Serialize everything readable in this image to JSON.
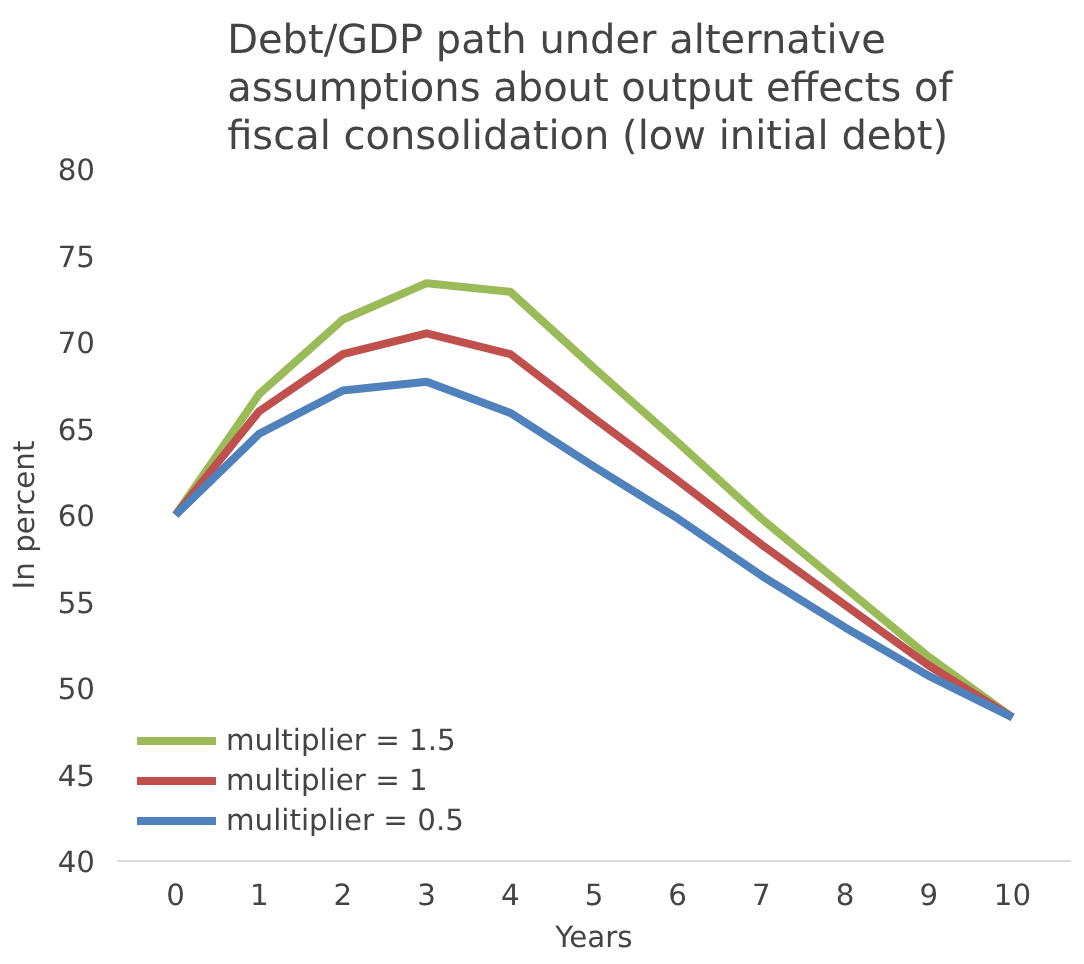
{
  "chart_data": {
    "type": "line",
    "title": "Debt/GDP path under alternative\nassumptions about output effects of\nfiscal consolidation  (low initial debt)",
    "xlabel": "Years",
    "ylabel": "In percent",
    "x": [
      0,
      1,
      2,
      3,
      4,
      5,
      6,
      7,
      8,
      9,
      10
    ],
    "xlim": [
      -0.7,
      10.7
    ],
    "xticks": [
      0,
      1,
      2,
      3,
      4,
      5,
      6,
      7,
      8,
      9,
      10
    ],
    "ylim": [
      40,
      80
    ],
    "yticks": [
      40,
      45,
      50,
      55,
      60,
      65,
      70,
      75,
      80
    ],
    "grid": false,
    "legend": "bottom left",
    "line_style": "solid",
    "marker": "none",
    "series": [
      {
        "name": "multiplier = 1.5",
        "color": "#9bbb59",
        "values": [
          60,
          67,
          71.3,
          73.4,
          72.9,
          68.5,
          64.2,
          59.8,
          55.8,
          51.8,
          48.3
        ]
      },
      {
        "name": "multiplier = 1",
        "color": "#c0504d",
        "values": [
          60,
          66,
          69.3,
          70.5,
          69.3,
          65.6,
          62,
          58.3,
          54.8,
          51.3,
          48.3
        ]
      },
      {
        "name": "mulitiplier = 0.5",
        "color": "#4f81bd",
        "values": [
          60,
          64.7,
          67.2,
          67.7,
          65.9,
          62.8,
          59.8,
          56.5,
          53.5,
          50.7,
          48.3
        ]
      }
    ]
  }
}
